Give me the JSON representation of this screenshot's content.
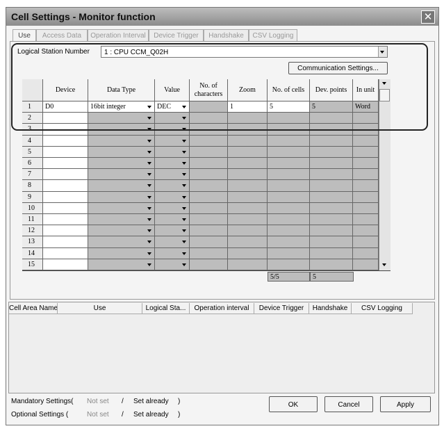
{
  "window": {
    "title": "Cell Settings - Monitor function"
  },
  "tabs": [
    "Use",
    "Access Data",
    "Operation Interval",
    "Device Trigger",
    "Handshake",
    "CSV Logging"
  ],
  "station": {
    "label": "Logical  Station Number",
    "value": "1 : CPU CCM_Q02H"
  },
  "comm_button": "Communication Settings...",
  "table": {
    "headers": [
      "Device",
      "Data Type",
      "Value",
      "No. of characters",
      "Zoom",
      "No. of cells",
      "Dev. points",
      "In unit"
    ],
    "row_numbers": [
      1,
      2,
      3,
      4,
      5,
      6,
      7,
      8,
      9,
      10,
      11,
      12,
      13,
      14,
      15
    ],
    "first_row": {
      "device": "D0",
      "data_type": "16bit integer",
      "value": "DEC",
      "zoom": 1,
      "cells": 5,
      "dev_points": 5,
      "unit": "Word"
    },
    "totals": {
      "cells": "5/5",
      "dev_points": 5
    }
  },
  "list_headers": [
    "Cell Area Name",
    "Use",
    "Logical Sta...",
    "Operation interval",
    "Device Trigger",
    "Handshake",
    "CSV Logging"
  ],
  "status": {
    "mandatory": {
      "label": "Mandatory Settings(",
      "not_set": "Not set",
      "sep": "/",
      "set_already": "Set already",
      "close": ")"
    },
    "optional": {
      "label": "Optional Settings  (",
      "not_set": "Not set",
      "sep": "/",
      "set_already": "Set already",
      "close": ")"
    }
  },
  "buttons": [
    "OK",
    "Cancel",
    "Apply"
  ]
}
